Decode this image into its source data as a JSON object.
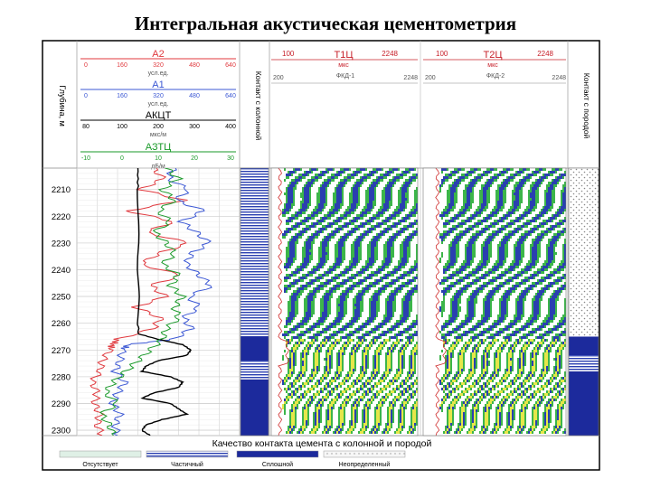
{
  "title": "Интегральная акустическая цементометрия",
  "colors": {
    "A2": "#e0393e",
    "A1": "#3b57d4",
    "AKCT": "#000000",
    "A3TC": "#1a9a2a",
    "depth_label": "#000000",
    "header_label": "#c7202a",
    "vdl_green": "#3cb54a",
    "vdl_blue": "#2a3fb0",
    "vdl_yellow": "#e6e64a",
    "legend_none": "#dff0e6",
    "legend_partial": "#6e7fe0",
    "legend_full": "#1c2a9c",
    "legend_undefined": "#f2f2f2"
  },
  "track1": {
    "depth_header": "Глубина, м",
    "curves": [
      {
        "id": "A2",
        "name": "А2",
        "unit": "усл.ед.",
        "scale": [
          "0",
          "160",
          "320",
          "480",
          "640"
        ]
      },
      {
        "id": "A1",
        "name": "А1",
        "unit": "усл.ед.",
        "scale": [
          "0",
          "160",
          "320",
          "480",
          "640"
        ]
      },
      {
        "id": "AKCT",
        "name": "АКЦТ",
        "unit": "мкс/м",
        "scale": [
          "80",
          "100",
          "200",
          "300",
          "400"
        ]
      },
      {
        "id": "A3TC",
        "name": "АЗТЦ",
        "unit": "дБ/м",
        "scale": [
          "-10",
          "0",
          "10",
          "20",
          "30"
        ]
      }
    ]
  },
  "contact_track_left": {
    "header": "Контакт с колонной"
  },
  "contact_track_right": {
    "header": "Контакт с породой"
  },
  "vdl1": {
    "name": "Т1Ц",
    "unit": "мкс",
    "scale_left": "100",
    "scale_right": "2248",
    "sub": "ФКД-1",
    "sub_left": "200",
    "sub_right": "2248"
  },
  "vdl2": {
    "name": "Т2Ц",
    "unit": "мкс",
    "scale_left": "100",
    "scale_right": "2248",
    "sub": "ФКД-2",
    "sub_left": "200",
    "sub_right": "2248"
  },
  "legend": {
    "title": "Качество контакта цемента с колонной и породой",
    "items": [
      "Отсутствует",
      "Частичный",
      "Сплошной",
      "Неопределенный"
    ]
  },
  "chart_data": {
    "type": "line",
    "title": "Интегральная акустическая цементометрия",
    "ylabel": "Глубина, м",
    "ylim": [
      2202,
      2302
    ],
    "yticks": [
      "2210",
      "2220",
      "2230",
      "2240",
      "2250",
      "2260",
      "2270",
      "2280",
      "2290",
      "2300"
    ],
    "series": [
      {
        "name": "А2",
        "unit": "усл.ед.",
        "xlim": [
          0,
          640
        ],
        "depth": [
          2202,
          2206,
          2210,
          2214,
          2218,
          2222,
          2226,
          2230,
          2234,
          2238,
          2242,
          2246,
          2250,
          2254,
          2258,
          2262,
          2266,
          2268,
          2270,
          2274,
          2278,
          2282,
          2286,
          2290,
          2294,
          2298,
          2302
        ],
        "values": [
          300,
          340,
          250,
          420,
          200,
          380,
          270,
          440,
          320,
          250,
          410,
          290,
          350,
          230,
          330,
          300,
          160,
          140,
          130,
          100,
          90,
          60,
          80,
          70,
          90,
          80,
          100
        ]
      },
      {
        "name": "А1",
        "unit": "усл.ед.",
        "xlim": [
          0,
          640
        ],
        "depth": [
          2202,
          2206,
          2210,
          2214,
          2218,
          2222,
          2226,
          2230,
          2234,
          2238,
          2242,
          2246,
          2250,
          2254,
          2258,
          2262,
          2266,
          2268,
          2270,
          2274,
          2278,
          2282,
          2286,
          2290,
          2294,
          2298,
          2302
        ],
        "values": [
          380,
          360,
          440,
          390,
          500,
          410,
          470,
          520,
          450,
          430,
          480,
          530,
          440,
          480,
          420,
          450,
          380,
          200,
          180,
          170,
          150,
          190,
          160,
          140,
          170,
          150,
          160
        ]
      },
      {
        "name": "АКЦТ",
        "unit": "мкс/м",
        "xlim": [
          0,
          400
        ],
        "depth": [
          2202,
          2210,
          2220,
          2230,
          2240,
          2250,
          2260,
          2264,
          2266,
          2268,
          2270,
          2272,
          2274,
          2276,
          2278,
          2280,
          2282,
          2284,
          2286,
          2288,
          2290,
          2292,
          2294,
          2296,
          2298,
          2300,
          2302
        ],
        "values": [
          150,
          150,
          150,
          152,
          150,
          152,
          150,
          152,
          200,
          260,
          280,
          270,
          200,
          170,
          160,
          230,
          260,
          250,
          190,
          160,
          230,
          250,
          270,
          210,
          170,
          160,
          180
        ]
      },
      {
        "name": "АЗТЦ",
        "unit": "дБ/м",
        "xlim": [
          -10,
          30
        ],
        "depth": [
          2202,
          2206,
          2210,
          2214,
          2218,
          2222,
          2226,
          2230,
          2234,
          2238,
          2242,
          2246,
          2250,
          2254,
          2258,
          2262,
          2266,
          2270,
          2274,
          2278,
          2282,
          2286,
          2290,
          2294,
          2298,
          2302
        ],
        "values": [
          12,
          15,
          11,
          14,
          10,
          13,
          9,
          12,
          14,
          11,
          15,
          13,
          16,
          14,
          15,
          12,
          11,
          8,
          5,
          2,
          -1,
          -3,
          0,
          -4,
          -2,
          -1
        ]
      }
    ],
    "contact_quality": {
      "casing": [
        {
          "from": 2202,
          "to": 2265,
          "quality": "Частичный"
        },
        {
          "from": 2265,
          "to": 2274,
          "quality": "Сплошной"
        },
        {
          "from": 2274,
          "to": 2281,
          "quality": "Частичный"
        },
        {
          "from": 2281,
          "to": 2302,
          "quality": "Сплошной"
        }
      ],
      "formation": [
        {
          "from": 2202,
          "to": 2265,
          "quality": "Неопределенный"
        },
        {
          "from": 2265,
          "to": 2272,
          "quality": "Сплошной"
        },
        {
          "from": 2272,
          "to": 2278,
          "quality": "Частичный"
        },
        {
          "from": 2278,
          "to": 2302,
          "quality": "Сплошной"
        }
      ]
    }
  }
}
